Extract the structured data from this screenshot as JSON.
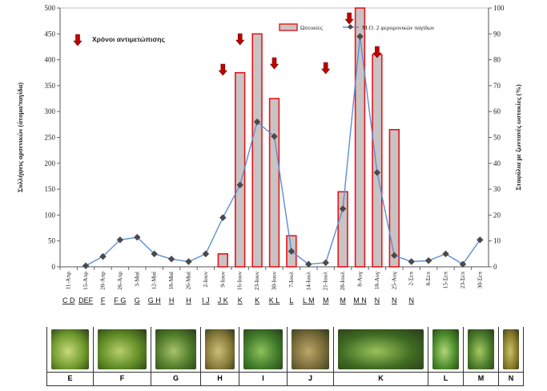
{
  "chart_data": {
    "type": "bar+line",
    "categories": [
      "11-Απρ",
      "15-Απρ",
      "20-Απρ",
      "26-Απρ",
      "3-Μαϊ",
      "12-Μαϊ",
      "18-Μαϊ",
      "26-Μαϊ",
      "2-Ιουν",
      "9-Ιουν",
      "16-Ιουν",
      "23-Ιουν",
      "30-Ιουν",
      "7-Ιουλ",
      "14-Ιουλ",
      "21-Ιουλ",
      "28-Ιουλ",
      "8-Αυγ",
      "18-Αυγ",
      "25-Αυγ",
      "2-Σεπ",
      "8-Σεπ",
      "15-Σεπ",
      "23-Σεπ",
      "30-Σεπ"
    ],
    "stage_labels": [
      "C D",
      "DEF",
      "F",
      "F G",
      "G",
      "G H",
      "H",
      "H",
      "I J",
      "J K",
      "K",
      "K",
      "K L",
      "L",
      "L M",
      "M",
      "M",
      "M N",
      "N",
      "N",
      "N",
      "",
      "",
      "",
      ""
    ],
    "series": [
      {
        "name": "Ωοτοκίες",
        "type": "bar",
        "axis": "right",
        "values": [
          0,
          0,
          0,
          0,
          0,
          0,
          0,
          0,
          0,
          5,
          75,
          90,
          65,
          12,
          0,
          0,
          29,
          100,
          82,
          53,
          0,
          0,
          0,
          0,
          0
        ]
      },
      {
        "name": "Μ.Ο. 2 φερομονικών παγίδων",
        "type": "line",
        "axis": "left",
        "values": [
          null,
          2,
          20,
          52,
          57,
          25,
          15,
          10,
          25,
          95,
          158,
          280,
          252,
          30,
          5,
          8,
          112,
          445,
          182,
          22,
          10,
          12,
          25,
          5,
          52
        ]
      }
    ],
    "treatment_indices": [
      9,
      10,
      12,
      15,
      16,
      18
    ],
    "treatment_label": "Χρόνοι αντιμετώπισης",
    "ylabel": "Συλλήψεις αρσενικών (άτομα/παγίδα)",
    "y2label": "Σταφύλια με ζωντανές ωοτοκίες (%)",
    "ylim": [
      0,
      500
    ],
    "y2lim": [
      0,
      100
    ],
    "yticks": [
      0,
      50,
      100,
      150,
      200,
      250,
      300,
      350,
      400,
      450,
      500
    ],
    "y2ticks": [
      0,
      10,
      20,
      30,
      40,
      50,
      60,
      70,
      80,
      90,
      100
    ],
    "colors": {
      "bar_fill": "#c9c3c3",
      "bar_edge": "#e8151b",
      "line": "#5b8fd4",
      "marker": "#4a4a4a",
      "arrow": "#c00000",
      "grid": "#d0d0d0"
    }
  },
  "photo_strip": {
    "labels": [
      "E",
      "F",
      "G",
      "H",
      "I",
      "J",
      "K",
      "L",
      "M",
      "N"
    ]
  }
}
